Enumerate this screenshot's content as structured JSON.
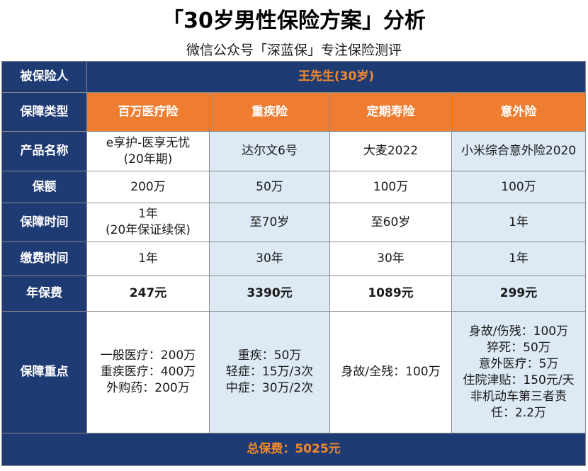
{
  "header": {
    "title": "「30岁男性保险方案」分析",
    "subtitle": "微信公众号「深蓝保」专注保险测评"
  },
  "insured": {
    "label": "被保险人",
    "value": "王先生(30岁)"
  },
  "coverage_type": {
    "label": "保障类型",
    "values": [
      "百万医疗险",
      "重疾险",
      "定期寿险",
      "意外险"
    ]
  },
  "product": {
    "label": "产品名称",
    "values": [
      [
        "e享护-医享无忧",
        "(20年期)"
      ],
      [
        "达尔文6号"
      ],
      [
        "大麦2022"
      ],
      [
        "小米综合意外险2020"
      ]
    ]
  },
  "sum_insured": {
    "label": "保额",
    "values": [
      "200万",
      "50万",
      "100万",
      "100万"
    ]
  },
  "coverage_period": {
    "label": "保障时间",
    "values": [
      [
        "1年",
        "(20年保证续保)"
      ],
      [
        "至70岁"
      ],
      [
        "至60岁"
      ],
      [
        "1年"
      ]
    ]
  },
  "payment_period": {
    "label": "缴费时间",
    "values": [
      "1年",
      "30年",
      "30年",
      "1年"
    ]
  },
  "annual_premium": {
    "label": "年保费",
    "values": [
      "247元",
      "3390元",
      "1089元",
      "299元"
    ]
  },
  "key_coverage": {
    "label": "保障重点",
    "values": [
      [
        "一般医疗：200万",
        "重疾医疗：400万",
        "外购药：200万"
      ],
      [
        "重疾：50万",
        "轻症：15万/3次",
        "中症：30万/2次"
      ],
      [
        "身故/全残：100万"
      ],
      [
        "身故/伤残：100万",
        "猝死：50万",
        "意外医疗：5万",
        "住院津贴：150元/天",
        "非机动车第三者责",
        "任：2.2万"
      ]
    ]
  },
  "total": "总保费：5025元"
}
